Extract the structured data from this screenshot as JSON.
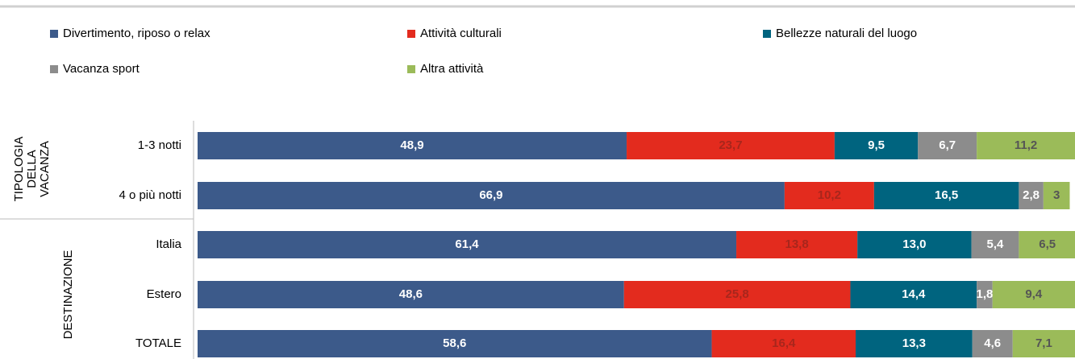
{
  "chart_data": {
    "type": "stacked-bar-horizontal",
    "categories": [
      "1-3 notti",
      "4 o più notti",
      "Italia",
      "Estero",
      "TOTALE"
    ],
    "groups": [
      {
        "lines": [
          "TIPOLOGIA",
          "DELLA",
          "VACANZA"
        ]
      },
      {
        "lines": [
          "DESTINAZIONE"
        ]
      }
    ],
    "xlim": [
      0,
      100
    ],
    "series": [
      {
        "name": "Divertimento, riposo o relax",
        "color": "#3c5a8a",
        "label_color": "#ffffff",
        "values": [
          48.9,
          66.9,
          61.4,
          48.6,
          58.6
        ],
        "value_labels": [
          "48,9",
          "66,9",
          "61,4",
          "48,6",
          "58,6"
        ]
      },
      {
        "name": "Attività culturali",
        "color": "#e32b1e",
        "label_color": "#a8261c",
        "values": [
          23.7,
          10.2,
          13.8,
          25.8,
          16.4
        ],
        "value_labels": [
          "23,7",
          "10,2",
          "13,8",
          "25,8",
          "16,4"
        ]
      },
      {
        "name": "Bellezze naturali del luogo",
        "color": "#00647f",
        "label_color": "#ffffff",
        "values": [
          9.5,
          16.5,
          13.0,
          14.4,
          13.3
        ],
        "value_labels": [
          "9,5",
          "16,5",
          "13,0",
          "14,4",
          "13,3"
        ]
      },
      {
        "name": "Vacanza sport",
        "color": "#8c8c8c",
        "label_color": "#ffffff",
        "values": [
          6.7,
          2.8,
          5.4,
          1.8,
          4.6
        ],
        "value_labels": [
          "6,7",
          "2,8",
          "5,4",
          "1,8",
          "4,6"
        ]
      },
      {
        "name": "Altra attività",
        "color": "#9bbb59",
        "label_color": "#555555",
        "values": [
          11.2,
          3,
          6.5,
          9.4,
          7.1
        ],
        "value_labels": [
          "11,2",
          "3",
          "6,5",
          "9,4",
          "7,1"
        ]
      }
    ]
  }
}
